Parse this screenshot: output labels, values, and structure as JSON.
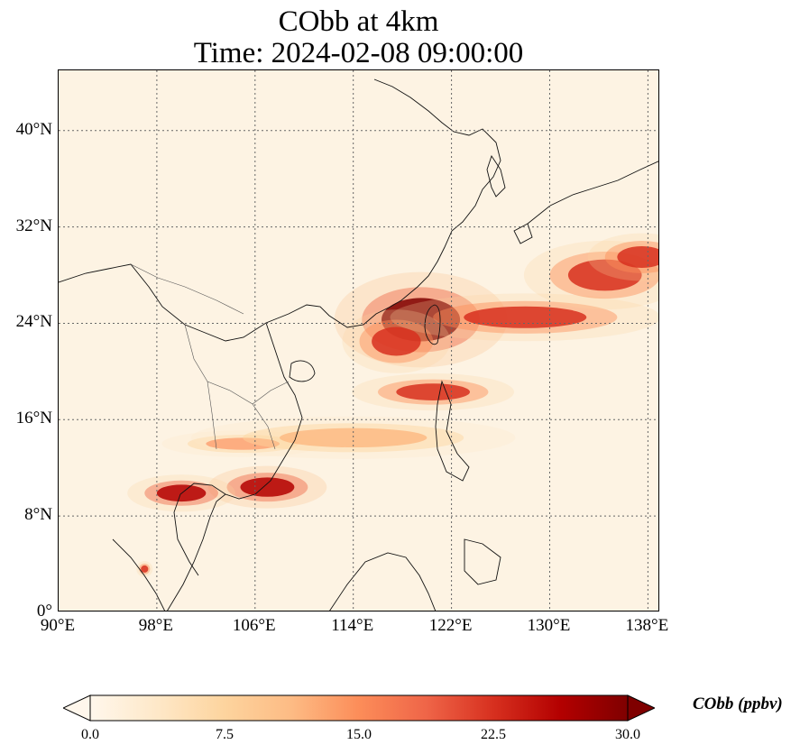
{
  "title": {
    "line1": "CObb at 4km",
    "line2": "Time: 2024-02-08 09:00:00"
  },
  "map": {
    "extent": {
      "lon_min": 90,
      "lon_max": 139,
      "lat_min": 0,
      "lat_max": 45
    },
    "lat_ticks": [
      {
        "value": 0,
        "label": "0°"
      },
      {
        "value": 8,
        "label": "8°N"
      },
      {
        "value": 16,
        "label": "16°N"
      },
      {
        "value": 24,
        "label": "24°N"
      },
      {
        "value": 32,
        "label": "32°N"
      },
      {
        "value": 40,
        "label": "40°N"
      }
    ],
    "lon_ticks": [
      {
        "value": 90,
        "label": "90°E"
      },
      {
        "value": 98,
        "label": "98°E"
      },
      {
        "value": 106,
        "label": "106°E"
      },
      {
        "value": 114,
        "label": "114°E"
      },
      {
        "value": 122,
        "label": "122°E"
      },
      {
        "value": 130,
        "label": "130°E"
      },
      {
        "value": 138,
        "label": "138°E"
      }
    ],
    "gridlines": true,
    "background_color": "#fdf3e3",
    "plumes": [
      {
        "name": "east-china-taiwan-core",
        "lon": 119.5,
        "lat": 24.3,
        "rx": 3.2,
        "ry": 1.8,
        "value": 29
      },
      {
        "name": "taiwan-strait-outflow",
        "lon": 117.5,
        "lat": 22.5,
        "rx": 2.0,
        "ry": 1.2,
        "value": 24
      },
      {
        "name": "luzon-strait-band",
        "lon": 120.5,
        "lat": 18.3,
        "rx": 3.0,
        "ry": 0.7,
        "value": 24
      },
      {
        "name": "mekong-delta",
        "lon": 107.0,
        "lat": 10.4,
        "rx": 2.2,
        "ry": 0.8,
        "value": 28
      },
      {
        "name": "gulf-of-thailand",
        "lon": 100.0,
        "lat": 9.9,
        "rx": 2.0,
        "ry": 0.7,
        "value": 26
      },
      {
        "name": "east-sea-band",
        "lon": 128.0,
        "lat": 24.5,
        "rx": 5.0,
        "ry": 0.9,
        "value": 22
      },
      {
        "name": "pacific-swirl",
        "lon": 134.5,
        "lat": 28.0,
        "rx": 3.0,
        "ry": 1.3,
        "value": 24
      },
      {
        "name": "far-east-band",
        "lon": 137.5,
        "lat": 29.5,
        "rx": 2.0,
        "ry": 0.9,
        "value": 22
      },
      {
        "name": "central-vietnam",
        "lon": 105.0,
        "lat": 14.0,
        "rx": 3.0,
        "ry": 0.5,
        "value": 14
      },
      {
        "name": "south-china-sea-band",
        "lon": 114.0,
        "lat": 14.5,
        "rx": 6.0,
        "ry": 0.8,
        "value": 12
      },
      {
        "name": "northern-sumatra-spot",
        "lon": 97.0,
        "lat": 3.6,
        "rx": 0.3,
        "ry": 0.3,
        "value": 24
      }
    ]
  },
  "colorbar": {
    "label": "CObb (ppbv)",
    "ticks": [
      {
        "value": 0,
        "label": "0.0"
      },
      {
        "value": 7.5,
        "label": "7.5"
      },
      {
        "value": 15,
        "label": "15.0"
      },
      {
        "value": 22.5,
        "label": "22.5"
      },
      {
        "value": 30,
        "label": "30.0"
      }
    ],
    "min": 0,
    "max": 30,
    "colors": [
      "#fff7ec",
      "#fee8c8",
      "#fdd49e",
      "#fdbb84",
      "#fc8d59",
      "#ef6548",
      "#d7301f",
      "#b30000",
      "#7f0000"
    ]
  }
}
